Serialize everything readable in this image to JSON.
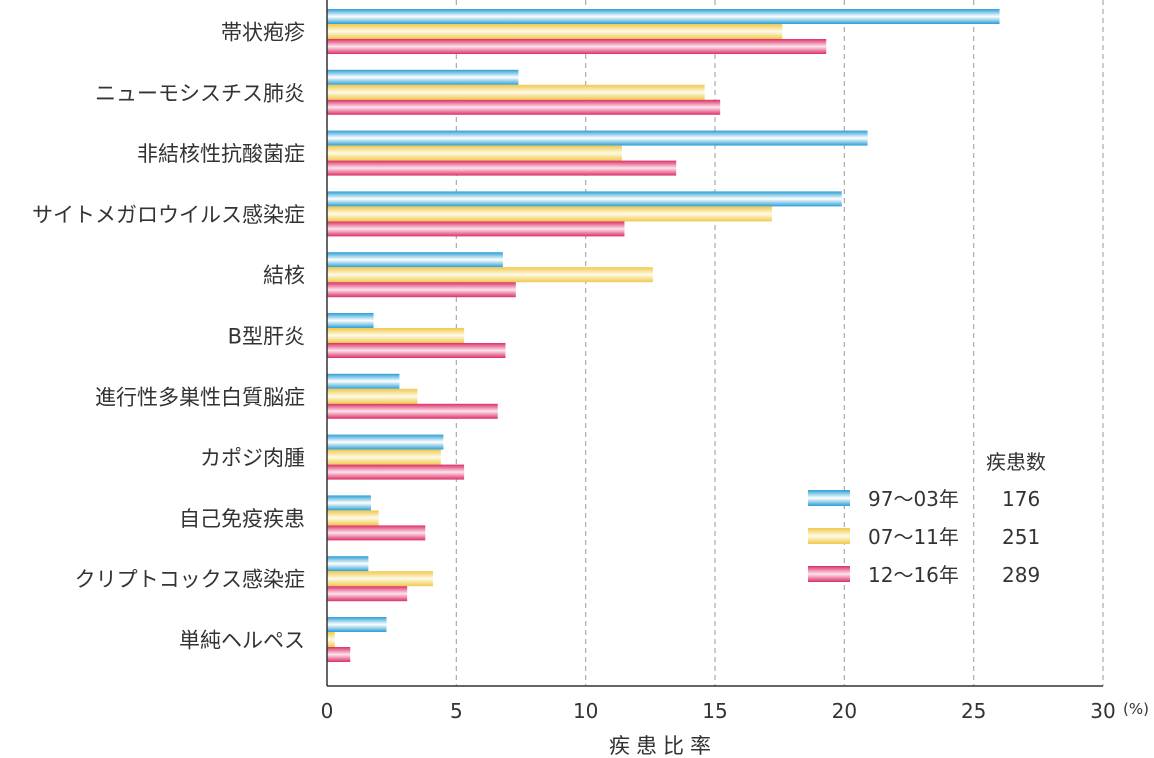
{
  "chart_data": {
    "type": "bar",
    "orientation": "horizontal",
    "categories": [
      "帯状疱疹",
      "ニューモシスチス肺炎",
      "非結核性抗酸菌症",
      "サイトメガロウイルス感染症",
      "結核",
      "B型肝炎",
      "進行性多巣性白質脳症",
      "カポジ肉腫",
      "自己免疫疾患",
      "クリプトコックス感染症",
      "単純ヘルペス"
    ],
    "series": [
      {
        "name": "97〜03年",
        "count": "176",
        "color": "#3aaee0",
        "values": [
          26.0,
          7.4,
          20.9,
          19.9,
          6.8,
          1.8,
          2.8,
          4.5,
          1.7,
          1.6,
          2.3
        ]
      },
      {
        "name": "07〜11年",
        "count": "251",
        "color": "#f5d76a",
        "values": [
          17.6,
          14.6,
          11.4,
          17.2,
          12.6,
          5.3,
          3.5,
          4.4,
          2.0,
          4.1,
          0.3
        ]
      },
      {
        "name": "12〜16年",
        "count": "289",
        "color": "#e24678",
        "values": [
          19.3,
          15.2,
          13.5,
          11.5,
          7.3,
          6.9,
          6.6,
          5.3,
          3.8,
          3.1,
          0.9
        ]
      }
    ],
    "xlabel": "疾患比率",
    "x_unit": "(%)",
    "xlim": [
      0,
      30
    ],
    "xticks": [
      "0",
      "5",
      "10",
      "15",
      "20",
      "25",
      "30"
    ],
    "grid": "vertical dashed",
    "legend": {
      "title": "疾患数",
      "placement": "bottom-right"
    }
  }
}
